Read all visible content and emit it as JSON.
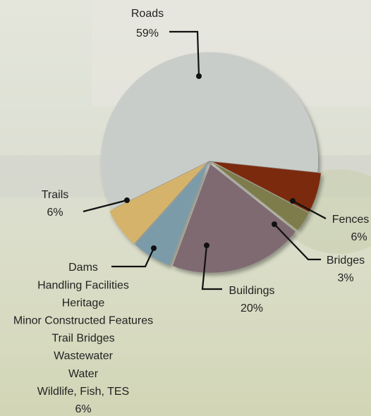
{
  "chart_data": {
    "type": "pie",
    "categories": [
      "Roads",
      "Fences",
      "Bridges",
      "Buildings",
      [
        "Dams",
        "Handling Facilities",
        "Heritage",
        "Minor Constructed Features",
        "Trail Bridges",
        "Wastewater",
        "Water",
        "Wildlife, Fish, TES"
      ],
      "Trails"
    ],
    "values": [
      59,
      6,
      3,
      20,
      6,
      6
    ],
    "value_labels": [
      "59%",
      "6%",
      "3%",
      "20%",
      "6%",
      "6%"
    ],
    "colors": [
      "#c9cdc9",
      "#7b2b10",
      "#7e7b4c",
      "#7f6a72",
      "#7b9ba9",
      "#d5b36b"
    ]
  }
}
